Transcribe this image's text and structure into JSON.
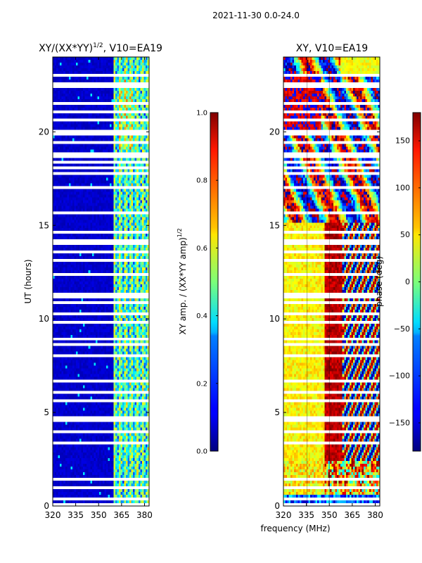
{
  "header": {
    "title": "2021-11-30 0.0-24.0"
  },
  "chart_data": [
    {
      "type": "heatmap",
      "title": "XY/(XX*YY)1/2, V10=EA19",
      "title_parts": {
        "base": "XY/(XX*YY)",
        "sup": "1/2",
        "rest": ", V10=EA19"
      },
      "xlabel": "",
      "ylabel": "UT (hours)",
      "xlim": [
        320,
        383
      ],
      "ylim": [
        0,
        24
      ],
      "x_ticks": [
        320,
        335,
        350,
        365,
        380
      ],
      "y_ticks": [
        0,
        5,
        10,
        15,
        20
      ],
      "colormap": "jet",
      "colorbar": {
        "label": "XY amp. / (XX*YY amp)1/2",
        "label_parts": {
          "base": "XY amp. / (XX*YY amp)",
          "sup": "1/2"
        },
        "range": [
          0.0,
          1.0
        ],
        "ticks": [
          "0.0",
          "0.2",
          "0.4",
          "0.6",
          "0.8",
          "1.0"
        ],
        "tick_values": [
          0.0,
          0.2,
          0.4,
          0.6,
          0.8,
          1.0
        ]
      },
      "notes": "Amplitude ratio is ~0.0–0.1 across most of the band; RFI-dominated region from ~360 to ~383 MHz shows values ~0.3–0.7 with vertical channel structure."
    },
    {
      "type": "heatmap",
      "title": "XY, V10=EA19",
      "xlabel": "frequency (MHz)",
      "ylabel": "",
      "xlim": [
        320,
        383
      ],
      "ylim": [
        0,
        24
      ],
      "x_ticks": [
        320,
        335,
        350,
        365,
        380
      ],
      "y_ticks": [
        0,
        5,
        10,
        15,
        20
      ],
      "colormap": "jet",
      "colorbar": {
        "label": "phase (deg)",
        "range": [
          -180,
          180
        ],
        "ticks": [
          "−150",
          "−100",
          "−50",
          "0",
          "50",
          "100",
          "150"
        ],
        "tick_values": [
          -150,
          -100,
          -50,
          0,
          50,
          100,
          150
        ]
      },
      "notes": "Phase near 20–60 deg (yellow) from ~2.5 to ~15 h below ~347 MHz, ~150–180 deg (red) from ~347 to ~358 MHz, noisy above 358 MHz and in the 0–2.5 h and 15–24 h windows."
    }
  ]
}
